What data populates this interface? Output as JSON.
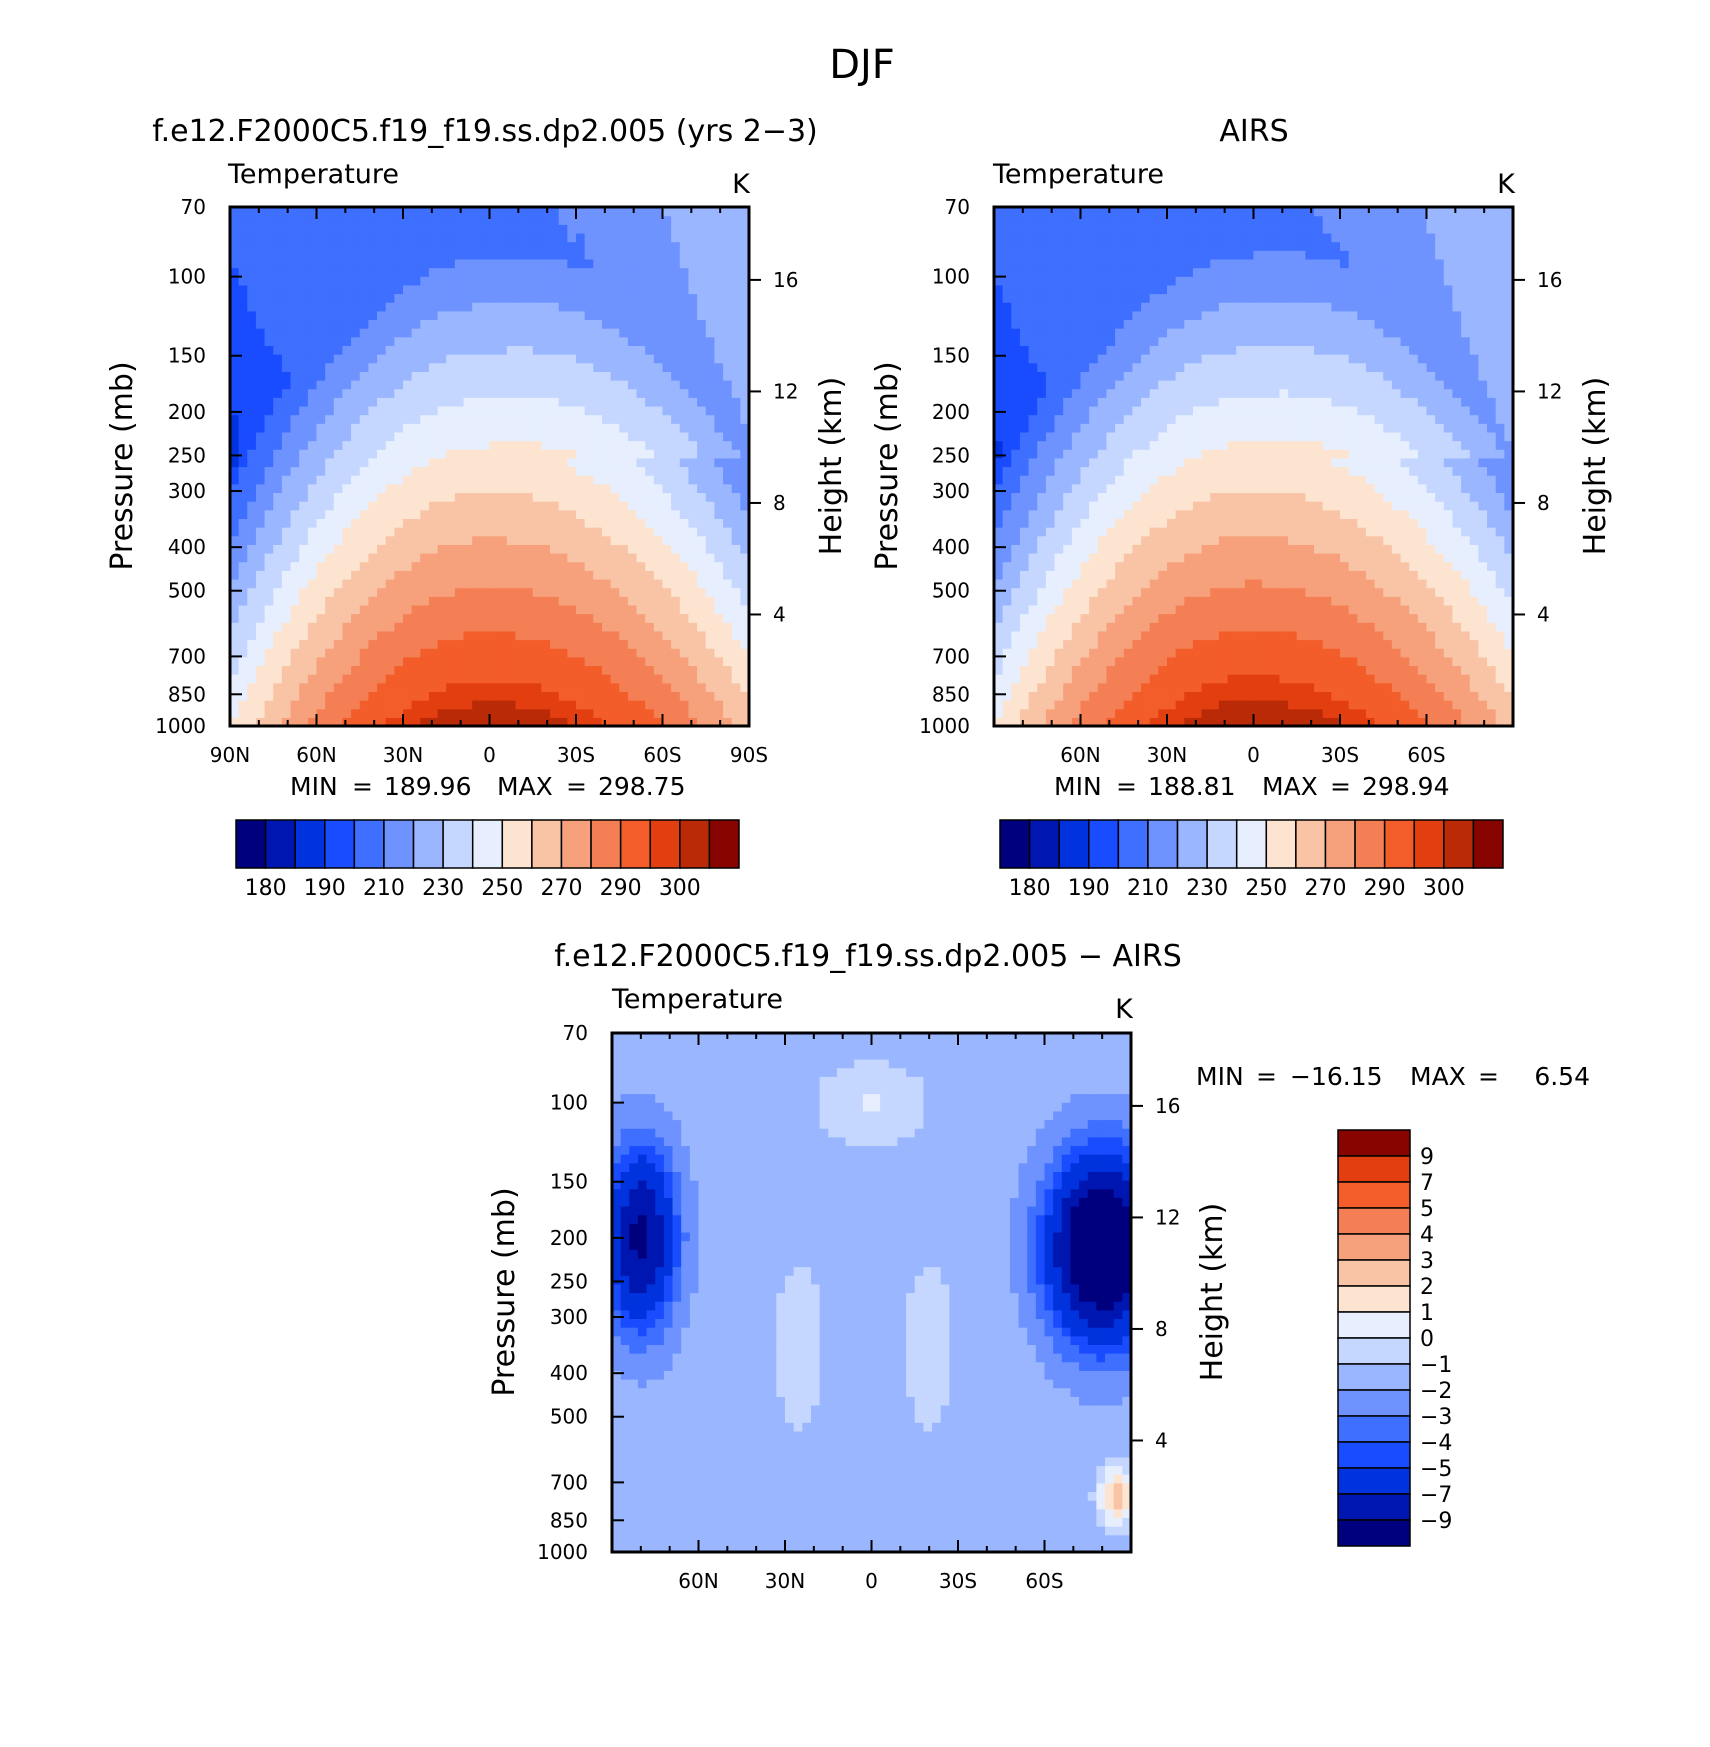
{
  "figure": {
    "title": "DJF"
  },
  "colors": {
    "abs_levels": [
      "#00007f",
      "#0016b0",
      "#0033dd",
      "#1a4cff",
      "#3f6fff",
      "#6e93ff",
      "#9ab6ff",
      "#c5d7ff",
      "#e7efff",
      "#fde4d0",
      "#f9c4a6",
      "#f6a17c",
      "#f57f54",
      "#f35d2a",
      "#e23e10",
      "#bb2a07",
      "#870400"
    ],
    "diff_levels": [
      "#00007f",
      "#0016b0",
      "#0033dd",
      "#1a4cff",
      "#3f6fff",
      "#6e93ff",
      "#9ab6ff",
      "#c5d7ff",
      "#e7efff",
      "#fde4d0",
      "#f9c4a6",
      "#f6a17c",
      "#f57f54",
      "#f35d2a",
      "#e23e10",
      "#bb2a07",
      "#870400"
    ]
  },
  "chart_data": [
    {
      "type": "heatmap",
      "title": "f.e12.F2000C5.f19_f19.ss.dp2.005 (yrs 2−3)",
      "subtitle": "Temperature",
      "units": "K",
      "xlabel": "",
      "ylabel": "Pressure (mb)",
      "y2label": "Height (km)",
      "xticks": [
        "90N",
        "60N",
        "30N",
        "0",
        "30S",
        "60S",
        "90S"
      ],
      "yticks": [
        "70",
        "100",
        "150",
        "200",
        "250",
        "300",
        "400",
        "500",
        "700",
        "850",
        "1000"
      ],
      "y2ticks": [
        "16",
        "12",
        "8",
        "4"
      ],
      "ylim": [
        1000,
        70
      ],
      "y_scale": "log",
      "stats": {
        "min_label": "MIN",
        "min": "189.96",
        "max_label": "MAX",
        "max": "298.75"
      },
      "colorbar_labels": [
        "180",
        "190",
        "210",
        "230",
        "250",
        "270",
        "290",
        "300"
      ]
    },
    {
      "type": "heatmap",
      "title": "AIRS",
      "subtitle": "Temperature",
      "units": "K",
      "xlabel": "",
      "ylabel": "Pressure (mb)",
      "y2label": "Height (km)",
      "xticks": [
        "60N",
        "30N",
        "0",
        "30S",
        "60S"
      ],
      "yticks": [
        "70",
        "100",
        "150",
        "200",
        "250",
        "300",
        "400",
        "500",
        "700",
        "850",
        "1000"
      ],
      "y2ticks": [
        "16",
        "12",
        "8",
        "4"
      ],
      "ylim": [
        1000,
        70
      ],
      "y_scale": "log",
      "stats": {
        "min_label": "MIN",
        "min": "188.81",
        "max_label": "MAX",
        "max": "298.94"
      },
      "colorbar_labels": [
        "180",
        "190",
        "210",
        "230",
        "250",
        "270",
        "290",
        "300"
      ]
    },
    {
      "type": "heatmap",
      "title": "f.e12.F2000C5.f19_f19.ss.dp2.005 − AIRS",
      "subtitle": "Temperature",
      "units": "K",
      "xlabel": "",
      "ylabel": "Pressure (mb)",
      "y2label": "Height (km)",
      "xticks": [
        "60N",
        "30N",
        "0",
        "30S",
        "60S"
      ],
      "yticks": [
        "70",
        "100",
        "150",
        "200",
        "250",
        "300",
        "400",
        "500",
        "700",
        "850",
        "1000"
      ],
      "y2ticks": [
        "16",
        "12",
        "8",
        "4"
      ],
      "ylim": [
        1000,
        70
      ],
      "y_scale": "log",
      "stats": {
        "min_label": "MIN",
        "min": "−16.15",
        "max_label": "MAX",
        "max": "6.54"
      },
      "colorbar_labels": [
        "9",
        "7",
        "5",
        "4",
        "3",
        "2",
        "1",
        "0",
        "−1",
        "−2",
        "−3",
        "−4",
        "−5",
        "−7",
        "−9"
      ]
    }
  ]
}
